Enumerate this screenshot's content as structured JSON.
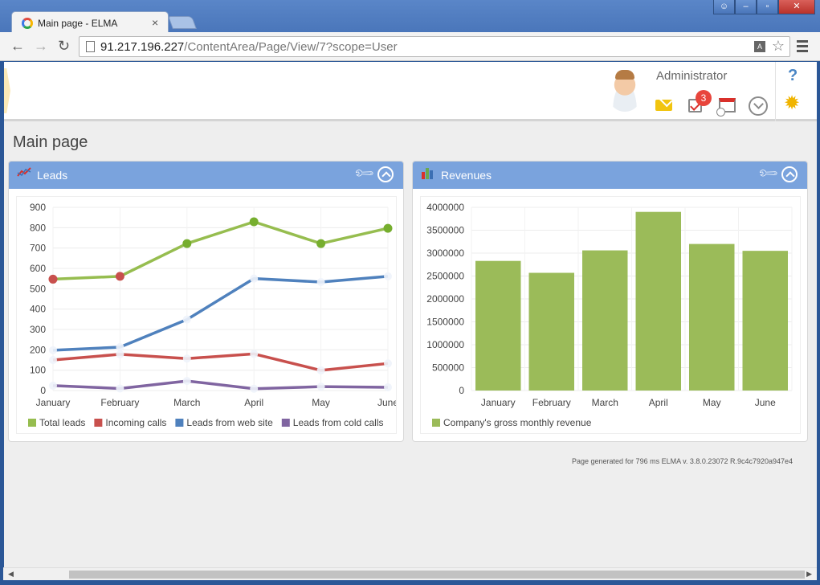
{
  "browser": {
    "tab_title": "Main page - ELMA",
    "tab_close": "×",
    "url_host": "91.217.196.227",
    "url_path": "/ContentArea/Page/View/7?scope=User"
  },
  "header": {
    "user_name": "Administrator",
    "tasks_badge": "3",
    "help_label": "?"
  },
  "page": {
    "title": "Main page",
    "footer_note": "Page generated for 796 ms ELMA v. 3.8.0.23072 R.9c4c7920a947e4"
  },
  "colors": {
    "portlet_header": "#7aa3dd",
    "total_leads": "#96bd4f",
    "incoming_calls": "#c8504d",
    "web_site": "#4f81bd",
    "cold_calls": "#8065a1",
    "revenue_bar": "#9bbb59"
  },
  "portlets": {
    "leads": {
      "title": "Leads"
    },
    "revenues": {
      "title": "Revenues"
    }
  },
  "chart_data": [
    {
      "type": "line",
      "categories": [
        "January",
        "February",
        "March",
        "April",
        "May",
        "June"
      ],
      "ylim": [
        0,
        900
      ],
      "yticks": [
        0,
        100,
        200,
        300,
        400,
        500,
        600,
        700,
        800,
        900
      ],
      "grid": true,
      "legend_position": "bottom",
      "series": [
        {
          "name": "Total leads",
          "values": [
            547,
            561,
            722,
            829,
            722,
            797
          ]
        },
        {
          "name": "Incoming calls",
          "values": [
            150,
            178,
            157,
            180,
            99,
            133
          ]
        },
        {
          "name": "Leads from web site",
          "values": [
            198,
            213,
            349,
            550,
            533,
            561
          ]
        },
        {
          "name": "Leads from cold calls",
          "values": [
            24,
            10,
            47,
            9,
            19,
            16
          ]
        }
      ]
    },
    {
      "type": "bar",
      "categories": [
        "January",
        "February",
        "March",
        "April",
        "May",
        "June"
      ],
      "ylim": [
        0,
        4000000
      ],
      "yticks": [
        0,
        500000,
        1000000,
        1500000,
        2000000,
        2500000,
        3000000,
        3500000,
        4000000
      ],
      "grid": true,
      "legend_position": "bottom",
      "series": [
        {
          "name": "Company's gross monthly revenue",
          "values": [
            2830000,
            2570000,
            3060000,
            3900000,
            3200000,
            3050000
          ]
        }
      ]
    }
  ]
}
